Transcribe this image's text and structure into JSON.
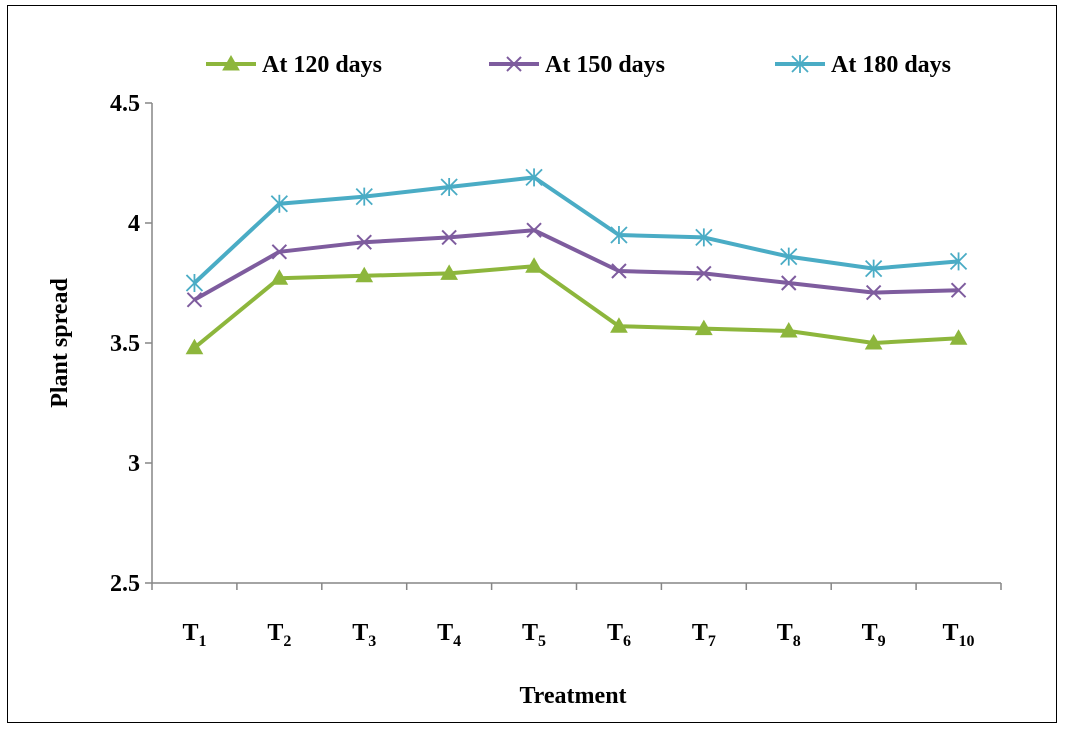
{
  "chart_data": {
    "type": "line",
    "title": "",
    "xlabel": "Treatment",
    "ylabel": "Plant spread",
    "categories": [
      {
        "base": "T",
        "sub": "1"
      },
      {
        "base": "T",
        "sub": "2"
      },
      {
        "base": "T",
        "sub": "3"
      },
      {
        "base": "T",
        "sub": "4"
      },
      {
        "base": "T",
        "sub": "5"
      },
      {
        "base": "T",
        "sub": "6"
      },
      {
        "base": "T",
        "sub": "7"
      },
      {
        "base": "T",
        "sub": "8"
      },
      {
        "base": "T",
        "sub": "9"
      },
      {
        "base": "T",
        "sub": "10"
      }
    ],
    "ylim": [
      2.5,
      4.5
    ],
    "yticks": [
      "2.5",
      "3",
      "3.5",
      "4",
      "4.5"
    ],
    "grid": false,
    "legend_position": "top",
    "series": [
      {
        "name": "At 120 days",
        "color": "#8DB63C",
        "marker": "triangle",
        "values": [
          3.48,
          3.77,
          3.78,
          3.79,
          3.82,
          3.57,
          3.56,
          3.55,
          3.5,
          3.52
        ]
      },
      {
        "name": "At 150 days",
        "color": "#7E5C9E",
        "marker": "x",
        "values": [
          3.68,
          3.88,
          3.92,
          3.94,
          3.97,
          3.8,
          3.79,
          3.75,
          3.71,
          3.72
        ]
      },
      {
        "name": "At 180 days",
        "color": "#4AACC5",
        "marker": "star",
        "values": [
          3.75,
          4.08,
          4.11,
          4.15,
          4.19,
          3.95,
          3.94,
          3.86,
          3.81,
          3.84
        ]
      }
    ]
  }
}
